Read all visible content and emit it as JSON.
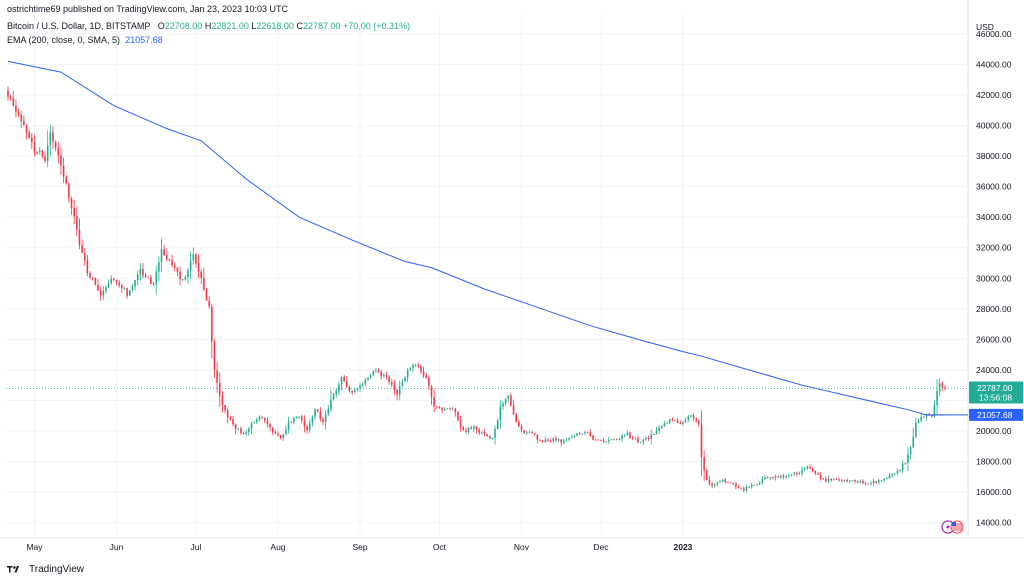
{
  "header": {
    "published": "ostrichtime69 published on TradingView.com, Jan 23, 2023 10:03 UTC",
    "symbol": "Bitcoin / U.S. Dollar, 1D, BITSTAMP",
    "ohlc": {
      "o_label": "O",
      "o_value": "22708.00",
      "h_label": "H",
      "h_value": "22821.00",
      "l_label": "L",
      "l_value": "22618.00",
      "c_label": "C",
      "c_value": "22787.00",
      "change": "+70.00 (+0.31%)"
    },
    "ema_label": "EMA (200, close, 0, SMA, 5)",
    "ema_value": "21057.68"
  },
  "axis": {
    "currency": "USD",
    "price_label": "22787.00",
    "countdown": "13:56:08",
    "ema_label": "21057.68"
  },
  "footer": {
    "brand": "TradingView"
  },
  "colors": {
    "up": "#22ab94",
    "down": "#f23645",
    "ema": "#2962ff",
    "grid": "#f0f3fa",
    "text": "#131722"
  },
  "chart_data": {
    "type": "candlestick",
    "title": "Bitcoin / U.S. Dollar, 1D, BITSTAMP",
    "x_ticks": [
      "May",
      "Jun",
      "Jul",
      "Aug",
      "Sep",
      "Oct",
      "Nov",
      "Dec",
      "2023"
    ],
    "y_ticks": [
      14000,
      16000,
      18000,
      20000,
      22000,
      24000,
      26000,
      28000,
      30000,
      32000,
      34000,
      36000,
      38000,
      40000,
      42000,
      44000,
      46000
    ],
    "ylim": [
      13000,
      47300
    ],
    "price_close_segments": [
      [
        0,
        42000
      ],
      [
        3,
        41000
      ],
      [
        6,
        39800
      ],
      [
        10,
        38500
      ],
      [
        14,
        37800
      ],
      [
        16,
        39500
      ],
      [
        19,
        38000
      ],
      [
        22,
        36000
      ],
      [
        25,
        34000
      ],
      [
        28,
        31500
      ],
      [
        30,
        30500
      ],
      [
        35,
        29000
      ],
      [
        40,
        30000
      ],
      [
        45,
        29000
      ],
      [
        50,
        30500
      ],
      [
        55,
        29500
      ],
      [
        58,
        31800
      ],
      [
        62,
        31000
      ],
      [
        66,
        29800
      ],
      [
        70,
        31500
      ],
      [
        73,
        30000
      ],
      [
        76,
        28000
      ],
      [
        78,
        24000
      ],
      [
        80,
        22200
      ],
      [
        83,
        21000
      ],
      [
        86,
        20200
      ],
      [
        89,
        19800
      ],
      [
        92,
        20500
      ],
      [
        95,
        21000
      ],
      [
        100,
        20000
      ],
      [
        103,
        19500
      ],
      [
        106,
        20500
      ],
      [
        110,
        21000
      ],
      [
        113,
        20000
      ],
      [
        116,
        21500
      ],
      [
        119,
        20500
      ],
      [
        122,
        22000
      ],
      [
        126,
        23500
      ],
      [
        130,
        22500
      ],
      [
        134,
        23000
      ],
      [
        138,
        24000
      ],
      [
        143,
        23500
      ],
      [
        147,
        22500
      ],
      [
        151,
        24000
      ],
      [
        154,
        24400
      ],
      [
        158,
        23500
      ],
      [
        161,
        21500
      ],
      [
        164,
        21400
      ],
      [
        168,
        21500
      ],
      [
        172,
        20000
      ],
      [
        176,
        20200
      ],
      [
        180,
        19800
      ],
      [
        183,
        19500
      ],
      [
        186,
        21500
      ],
      [
        189,
        22300
      ],
      [
        191,
        21000
      ],
      [
        194,
        20000
      ],
      [
        198,
        19800
      ],
      [
        202,
        19300
      ],
      [
        206,
        19500
      ],
      [
        210,
        19300
      ],
      [
        214,
        19700
      ],
      [
        218,
        20000
      ],
      [
        222,
        19400
      ],
      [
        226,
        19300
      ],
      [
        230,
        19500
      ],
      [
        234,
        19800
      ],
      [
        238,
        19300
      ],
      [
        242,
        19500
      ],
      [
        246,
        20300
      ],
      [
        250,
        20700
      ],
      [
        254,
        20500
      ],
      [
        258,
        21000
      ],
      [
        261,
        20500
      ],
      [
        262,
        18200
      ],
      [
        264,
        16800
      ],
      [
        266,
        16500
      ],
      [
        270,
        16800
      ],
      [
        274,
        16500
      ],
      [
        278,
        16200
      ],
      [
        282,
        16500
      ],
      [
        286,
        16900
      ],
      [
        290,
        17000
      ],
      [
        294,
        17100
      ],
      [
        298,
        17200
      ],
      [
        302,
        17600
      ],
      [
        305,
        17200
      ],
      [
        308,
        16800
      ],
      [
        312,
        16800
      ],
      [
        316,
        16800
      ],
      [
        320,
        16700
      ],
      [
        324,
        16600
      ],
      [
        328,
        16700
      ],
      [
        332,
        16900
      ],
      [
        336,
        17300
      ],
      [
        339,
        18000
      ],
      [
        341,
        19000
      ],
      [
        343,
        20500
      ],
      [
        345,
        21000
      ],
      [
        347,
        21100
      ],
      [
        349,
        20900
      ],
      [
        351,
        22600
      ],
      [
        352,
        23000
      ],
      [
        354,
        22787
      ]
    ],
    "ema_200": [
      [
        0,
        44200
      ],
      [
        20,
        43500
      ],
      [
        40,
        41300
      ],
      [
        60,
        39800
      ],
      [
        73,
        39000
      ],
      [
        90,
        36500
      ],
      [
        110,
        34000
      ],
      [
        130,
        32500
      ],
      [
        150,
        31100
      ],
      [
        160,
        30700
      ],
      [
        180,
        29300
      ],
      [
        200,
        28100
      ],
      [
        220,
        26900
      ],
      [
        240,
        25900
      ],
      [
        255,
        25200
      ],
      [
        262,
        24900
      ],
      [
        280,
        24000
      ],
      [
        300,
        23000
      ],
      [
        320,
        22200
      ],
      [
        340,
        21400
      ],
      [
        347,
        21050
      ],
      [
        354,
        21058
      ]
    ],
    "last_price": 22787.0,
    "ema_last": 21057.68
  }
}
